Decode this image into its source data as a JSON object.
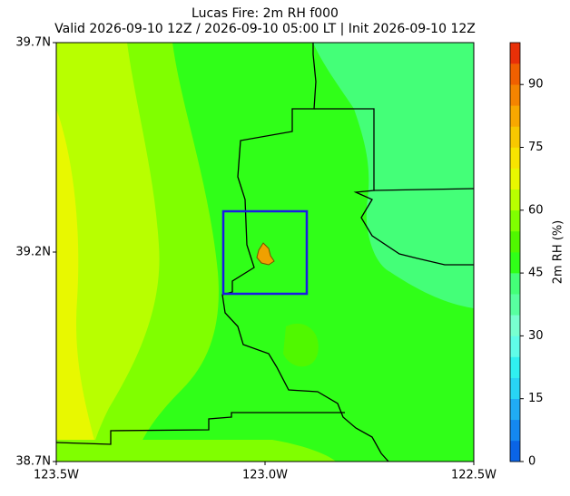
{
  "chart_data": {
    "type": "map",
    "title": "Lucas Fire: 2m RH f000",
    "subtitle": "Valid 2026-09-10 12Z / 2026-09-10 05:00 LT | Init 2026-09-10 12Z",
    "xlim": [
      -123.5,
      -122.5
    ],
    "xticks": [
      {
        "value": -123.5,
        "label": "123.5W"
      },
      {
        "value": -123.0,
        "label": "123.0W"
      },
      {
        "value": -122.5,
        "label": "122.5W"
      }
    ],
    "ylim": [
      38.7,
      39.7
    ],
    "yticks": [
      {
        "value": 38.7,
        "label": "38.7N"
      },
      {
        "value": 39.2,
        "label": "39.2N"
      },
      {
        "value": 39.7,
        "label": "39.7N"
      }
    ],
    "colorbar": {
      "label": "2m RH (%)",
      "lim": [
        0,
        100
      ],
      "ticks": [
        0,
        15,
        30,
        45,
        60,
        75,
        90
      ],
      "colors": [
        "#0a64e6",
        "#1488f0",
        "#20acf4",
        "#28d4f4",
        "#30f0f0",
        "#60fce8",
        "#78ffd0",
        "#58ffa0",
        "#44ff78",
        "#30ff18",
        "#50f800",
        "#80ff00",
        "#b8ff00",
        "#e8f800",
        "#f8e400",
        "#f8c800",
        "#f8a800",
        "#f48400",
        "#f06000",
        "#e83008"
      ]
    }
  }
}
